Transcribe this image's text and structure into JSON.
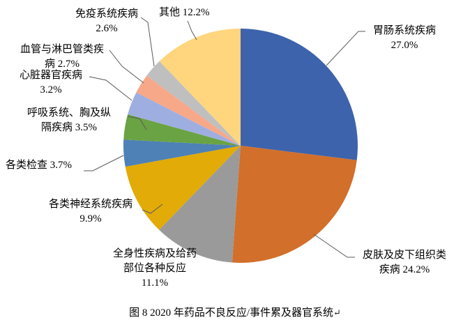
{
  "figure": {
    "caption": "图 8  2020 年药品不良反应/事件累及器官系统",
    "caption_mark": "↵"
  },
  "chart_data": {
    "type": "pie",
    "title": "图 8  2020 年药品不良反应/事件累及器官系统",
    "start_angle_deg": 0,
    "direction": "clockwise",
    "legend_position": "none",
    "label_style": "outside-with-leader-lines",
    "leader_line_color": "#595959",
    "slices": [
      {
        "label": "胃肠系统疾病",
        "value": 27.0,
        "pct_label": "27.0%",
        "color": "#3D63AC",
        "display_lines": [
          "胃肠系统疾病",
          "27.0%"
        ]
      },
      {
        "label": "皮肤及皮下组织类疾病",
        "value": 24.2,
        "pct_label": "24.2%",
        "color": "#D26F2B",
        "display_lines": [
          "皮肤及皮下组织类",
          "疾病 24.2%"
        ]
      },
      {
        "label": "全身性疾病及给药部位各种反应",
        "value": 11.1,
        "pct_label": "11.1%",
        "color": "#9A9A9A",
        "display_lines": [
          "全身性疾病及给药",
          "部位各种反应",
          "11.1%"
        ]
      },
      {
        "label": "各类神经系统疾病",
        "value": 9.9,
        "pct_label": "9.9%",
        "color": "#E2AB07",
        "display_lines": [
          "各类神经系统疾病",
          "9.9%"
        ]
      },
      {
        "label": "各类检查",
        "value": 3.7,
        "pct_label": "3.7%",
        "color": "#4E81B5",
        "display_lines": [
          "各类检查 3.7%"
        ]
      },
      {
        "label": "呼吸系统、胸及纵隔疾病",
        "value": 3.5,
        "pct_label": "3.5%",
        "color": "#6AA343",
        "display_lines": [
          "呼吸系统、胸及纵",
          "隔疾病 3.5%"
        ]
      },
      {
        "label": "心脏器官疾病",
        "value": 3.2,
        "pct_label": "3.2%",
        "color": "#9FAEE0",
        "display_lines": [
          "心脏器官疾病",
          "3.2%"
        ]
      },
      {
        "label": "血管与淋巴管类疾病",
        "value": 2.7,
        "pct_label": "2.7%",
        "color": "#F6A888",
        "display_lines": [
          "血管与淋巴管类疾",
          "病 2.7%"
        ]
      },
      {
        "label": "免疫系统疾病",
        "value": 2.6,
        "pct_label": "2.6%",
        "color": "#BFBFBF",
        "display_lines": [
          "免疫系统疾病",
          "2.6%"
        ]
      },
      {
        "label": "其他",
        "value": 12.2,
        "pct_label": "12.2%",
        "color": "#FFD57E",
        "display_lines": [
          "其他 12.2%"
        ]
      }
    ]
  }
}
